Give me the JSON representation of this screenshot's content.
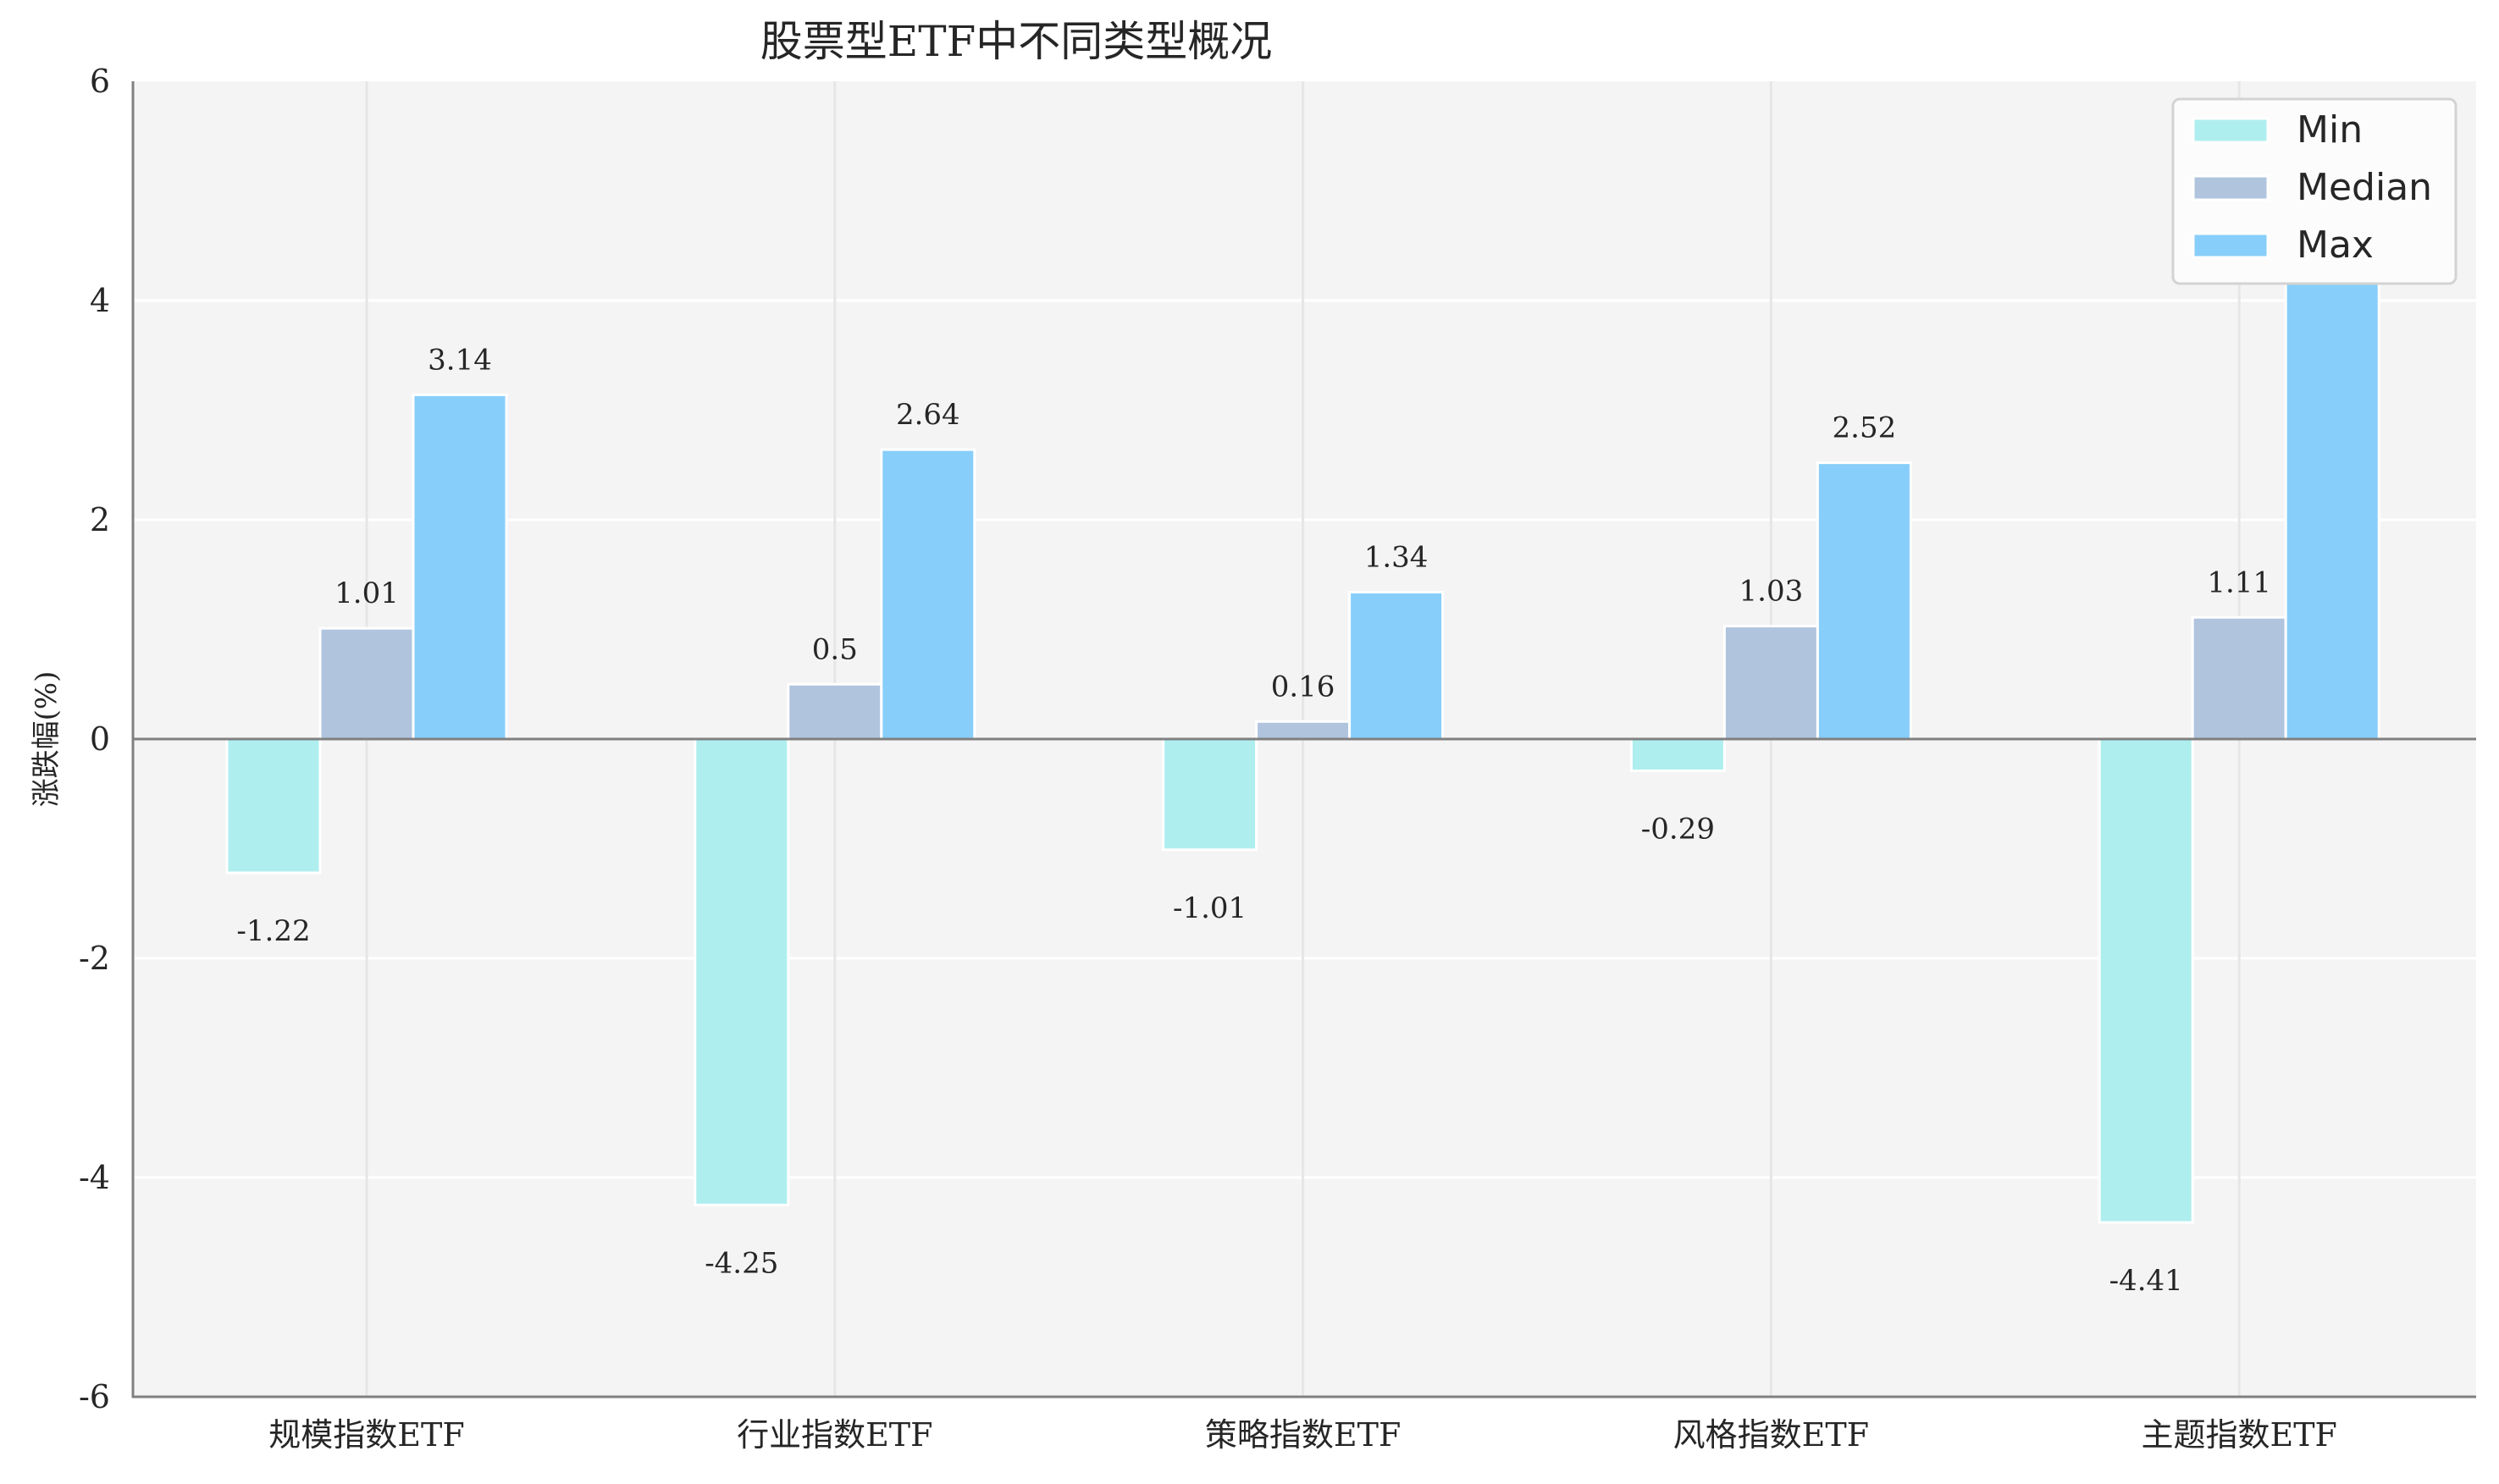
{
  "chart_data": {
    "type": "bar",
    "title": "股票型ETF中不同类型概况",
    "xlabel": "",
    "ylabel": "涨跌幅(%)",
    "ylim": [
      -6,
      6
    ],
    "yticks": [
      -6,
      -4,
      -2,
      0,
      2,
      4,
      6
    ],
    "ytick_labels": [
      "-6",
      "-4",
      "-2",
      "0",
      "2",
      "4",
      "6"
    ],
    "categories": [
      "规模指数ETF",
      "行业指数ETF",
      "策略指数ETF",
      "风格指数ETF",
      "主题指数ETF"
    ],
    "series": [
      {
        "name": "Min",
        "color": "#AFEEEE",
        "values": [
          -1.22,
          -4.25,
          -1.01,
          -0.29,
          -4.41
        ],
        "labels": [
          "-1.22",
          "-4.25",
          "-1.01",
          "-0.29",
          "-4.41"
        ]
      },
      {
        "name": "Median",
        "color": "#B0C4DE",
        "values": [
          1.01,
          0.5,
          0.16,
          1.03,
          1.11
        ],
        "labels": [
          "1.01",
          "0.5",
          "0.16",
          "1.03",
          "1.11"
        ]
      },
      {
        "name": "Max",
        "color": "#87CEFA",
        "values": [
          3.14,
          2.64,
          1.34,
          2.52,
          4.19
        ],
        "labels": [
          "3.14",
          "2.64",
          "1.34",
          "2.52",
          "4.19"
        ]
      }
    ],
    "grid": true,
    "legend_position": "upper right",
    "background": "#F4F4F4"
  }
}
